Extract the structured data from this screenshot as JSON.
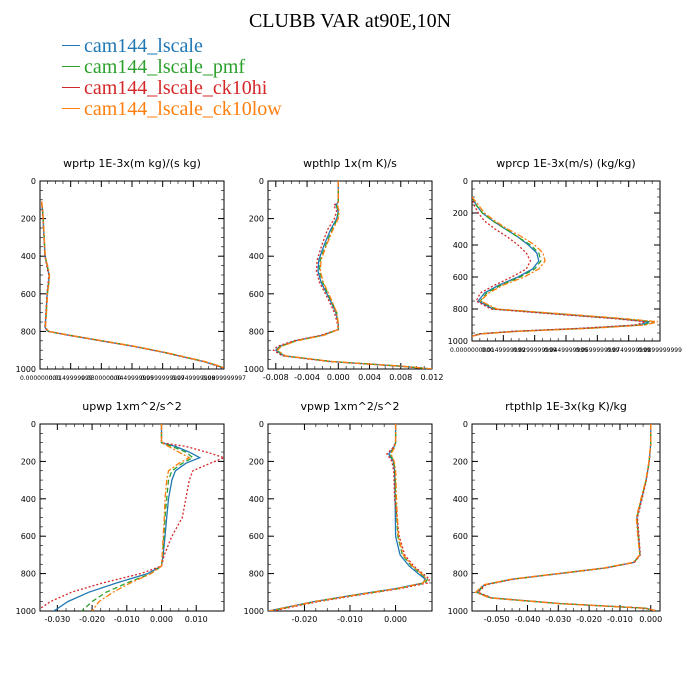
{
  "figure": {
    "title": "CLUBB VAR at90E,10N",
    "legend": [
      {
        "name": "cam144_lscale",
        "color": "#1f77b4"
      },
      {
        "name": "cam144_lscale_pmf",
        "color": "#2ca02c"
      },
      {
        "name": "cam144_lscale_ck10hi",
        "color": "#d62728"
      },
      {
        "name": "cam144_lscale_ck10low",
        "color": "#ff7f0e"
      }
    ]
  },
  "chart_data": [
    {
      "type": "line",
      "title": "wprtp  1E-3x(m kg)/(s kg)",
      "xlim": [
        0,
        0.09
      ],
      "ylim": [
        0,
        1000
      ],
      "y_inverted": true,
      "xticks": [
        0,
        0.015,
        0.03,
        0.045,
        0.06,
        0.075,
        0.09
      ],
      "xtick_labels": [
        "0.000000000",
        "0.0149999999",
        "0.030000000",
        "0.0449999999",
        "0.0599999999",
        "0.0749999999",
        "0.0899999997"
      ],
      "yticks": [
        0,
        200,
        400,
        600,
        800,
        1000
      ],
      "ytick_labels": [
        "0",
        "200",
        "400",
        "600",
        "800",
        "1000"
      ],
      "y": [
        110,
        150,
        200,
        300,
        400,
        480,
        500,
        540,
        600,
        700,
        780,
        800,
        820,
        850,
        880,
        910,
        940,
        960,
        980,
        992,
        1000
      ],
      "series": [
        {
          "name": "cam144_lscale",
          "values": [
            0.0008,
            0.0012,
            0.0015,
            0.002,
            0.0025,
            0.004,
            0.0045,
            0.0042,
            0.0035,
            0.003,
            0.0025,
            0.004,
            0.014,
            0.03,
            0.046,
            0.06,
            0.072,
            0.08,
            0.086,
            0.089,
            0.088
          ]
        },
        {
          "name": "cam144_lscale_pmf",
          "values": [
            0.0008,
            0.0012,
            0.0015,
            0.002,
            0.0025,
            0.0042,
            0.0046,
            0.0043,
            0.0036,
            0.0031,
            0.0026,
            0.0042,
            0.0143,
            0.0303,
            0.0463,
            0.0603,
            0.0723,
            0.0803,
            0.0863,
            0.0893,
            0.0885
          ]
        },
        {
          "name": "cam144_lscale_ck10hi",
          "values": [
            0.0008,
            0.0011,
            0.0014,
            0.0019,
            0.0024,
            0.0038,
            0.0043,
            0.004,
            0.0034,
            0.0029,
            0.0024,
            0.0038,
            0.0138,
            0.0298,
            0.0458,
            0.0598,
            0.0718,
            0.0798,
            0.0858,
            0.0888,
            0.0882
          ]
        },
        {
          "name": "cam144_lscale_ck10low",
          "values": [
            0.0008,
            0.0013,
            0.0016,
            0.0021,
            0.0026,
            0.0043,
            0.0047,
            0.0044,
            0.0037,
            0.0032,
            0.0027,
            0.0044,
            0.0145,
            0.0305,
            0.0466,
            0.0606,
            0.0726,
            0.0806,
            0.0866,
            0.0895,
            0.089
          ]
        }
      ]
    },
    {
      "type": "line",
      "title": "wpthlp  1x(m K)/s",
      "xlim": [
        -0.009,
        0.012
      ],
      "ylim": [
        0,
        1000
      ],
      "y_inverted": true,
      "xticks": [
        -0.008,
        -0.004,
        0.0,
        0.004,
        0.008,
        0.012
      ],
      "xtick_labels": [
        "-0.008",
        "-0.004",
        "0.000",
        "0.004",
        "0.008",
        "0.012"
      ],
      "yticks": [
        0,
        200,
        400,
        600,
        800,
        1000
      ],
      "ytick_labels": [
        "0",
        "200",
        "400",
        "600",
        "800",
        "1000"
      ],
      "y": [
        0,
        110,
        130,
        160,
        200,
        260,
        340,
        420,
        480,
        540,
        620,
        700,
        760,
        790,
        820,
        850,
        880,
        900,
        930,
        960,
        985,
        1000
      ],
      "series": [
        {
          "name": "cam144_lscale",
          "values": [
            0.0,
            0.0,
            -0.0003,
            0.0,
            -0.0002,
            -0.001,
            -0.0018,
            -0.0025,
            -0.0026,
            -0.0022,
            -0.0012,
            -0.0003,
            0.0,
            0.0,
            -0.002,
            -0.0055,
            -0.0075,
            -0.008,
            -0.007,
            -0.001,
            0.008,
            0.012
          ]
        },
        {
          "name": "cam144_lscale_pmf",
          "values": [
            0.0,
            0.0,
            -0.0002,
            0.0,
            -0.0001,
            -0.0008,
            -0.0016,
            -0.0023,
            -0.0024,
            -0.002,
            -0.0011,
            -0.0002,
            0.0,
            0.0,
            -0.0019,
            -0.0054,
            -0.0074,
            -0.0079,
            -0.0069,
            -0.0009,
            0.0081,
            0.012
          ]
        },
        {
          "name": "cam144_lscale_ck10hi",
          "values": [
            0.0,
            0.0,
            -0.0006,
            -0.0002,
            -0.0005,
            -0.0014,
            -0.0021,
            -0.0027,
            -0.0028,
            -0.0024,
            -0.0014,
            -0.0005,
            -0.0001,
            0.0,
            -0.0022,
            -0.0057,
            -0.0078,
            -0.0083,
            -0.0072,
            -0.0012,
            0.0079,
            0.012
          ]
        },
        {
          "name": "cam144_lscale_ck10low",
          "values": [
            0.0,
            0.0,
            -0.0001,
            0.0001,
            0.0,
            -0.0007,
            -0.0015,
            -0.0022,
            -0.0023,
            -0.0019,
            -0.001,
            -0.0002,
            0.0,
            0.0,
            -0.0018,
            -0.0053,
            -0.0073,
            -0.0078,
            -0.0068,
            -0.0008,
            0.0082,
            0.012
          ]
        }
      ]
    },
    {
      "type": "line",
      "title": "wprcp  1E-3x(m/s) (kg/kg)",
      "xlim": [
        0,
        0.09
      ],
      "ylim": [
        0,
        1000
      ],
      "y_inverted": true,
      "xticks": [
        0,
        0.015,
        0.03,
        0.045,
        0.06,
        0.075,
        0.09
      ],
      "xtick_labels": [
        "0.0000000000",
        "0.0149999999",
        "0.0299999999",
        "0.0449999999",
        "0.0599999999",
        "0.0749999999",
        "0.0899999999"
      ],
      "yticks": [
        0,
        200,
        400,
        600,
        800,
        1000
      ],
      "ytick_labels": [
        "0",
        "200",
        "400",
        "600",
        "800",
        "1000"
      ],
      "y": [
        100,
        150,
        200,
        250,
        300,
        350,
        400,
        450,
        500,
        550,
        600,
        650,
        700,
        750,
        800,
        830,
        860,
        880,
        900,
        920,
        940,
        955,
        970
      ],
      "series": [
        {
          "name": "cam144_lscale",
          "values": [
            0.0,
            0.002,
            0.005,
            0.01,
            0.016,
            0.022,
            0.027,
            0.031,
            0.032,
            0.029,
            0.022,
            0.013,
            0.006,
            0.003,
            0.01,
            0.04,
            0.07,
            0.085,
            0.08,
            0.055,
            0.02,
            0.004,
            0.0
          ]
        },
        {
          "name": "cam144_lscale_pmf",
          "values": [
            0.0,
            0.002,
            0.005,
            0.01,
            0.016,
            0.022,
            0.028,
            0.032,
            0.033,
            0.03,
            0.023,
            0.014,
            0.007,
            0.004,
            0.011,
            0.041,
            0.071,
            0.087,
            0.082,
            0.056,
            0.021,
            0.004,
            0.0
          ]
        },
        {
          "name": "cam144_lscale_ck10hi",
          "values": [
            0.0,
            0.001,
            0.003,
            0.006,
            0.011,
            0.017,
            0.022,
            0.026,
            0.028,
            0.026,
            0.019,
            0.011,
            0.004,
            0.002,
            0.009,
            0.038,
            0.068,
            0.083,
            0.078,
            0.053,
            0.019,
            0.004,
            0.0
          ]
        },
        {
          "name": "cam144_lscale_ck10low",
          "values": [
            0.0,
            0.003,
            0.006,
            0.011,
            0.017,
            0.024,
            0.03,
            0.034,
            0.035,
            0.032,
            0.025,
            0.015,
            0.008,
            0.004,
            0.012,
            0.043,
            0.073,
            0.089,
            0.083,
            0.058,
            0.022,
            0.005,
            0.0
          ]
        }
      ]
    },
    {
      "type": "line",
      "title": "upwp  1xm^2/s^2",
      "xlim": [
        -0.035,
        0.018
      ],
      "ylim": [
        0,
        1000
      ],
      "y_inverted": true,
      "xticks": [
        -0.03,
        -0.02,
        -0.01,
        0.0,
        0.01
      ],
      "xtick_labels": [
        "-0.030",
        "-0.020",
        "-0.010",
        "0.000",
        "0.010"
      ],
      "yticks": [
        0,
        200,
        400,
        600,
        800,
        1000
      ],
      "ytick_labels": [
        "0",
        "200",
        "400",
        "600",
        "800",
        "1000"
      ],
      "y": [
        0,
        100,
        120,
        150,
        180,
        210,
        250,
        300,
        400,
        500,
        600,
        700,
        760,
        800,
        850,
        900,
        950,
        1000
      ],
      "series": [
        {
          "name": "cam144_lscale",
          "values": [
            0.0,
            0.0,
            0.004,
            0.008,
            0.011,
            0.007,
            0.004,
            0.003,
            0.002,
            0.0015,
            0.001,
            0.0005,
            0.0,
            -0.004,
            -0.013,
            -0.021,
            -0.027,
            -0.031
          ]
        },
        {
          "name": "cam144_lscale_pmf",
          "values": [
            0.0,
            0.0,
            0.003,
            0.007,
            0.009,
            0.006,
            0.003,
            0.002,
            0.0015,
            0.001,
            0.0007,
            0.0003,
            0.0,
            -0.003,
            -0.01,
            -0.016,
            -0.02,
            -0.023
          ]
        },
        {
          "name": "cam144_lscale_ck10hi",
          "values": [
            0.0,
            0.0,
            0.007,
            0.013,
            0.018,
            0.014,
            0.009,
            0.008,
            0.007,
            0.006,
            0.003,
            0.0008,
            0.0,
            -0.006,
            -0.017,
            -0.026,
            -0.032,
            -0.036
          ]
        },
        {
          "name": "cam144_lscale_ck10low",
          "values": [
            0.0,
            0.0,
            0.002,
            0.005,
            0.008,
            0.005,
            0.002,
            0.0015,
            0.001,
            0.0008,
            0.0005,
            0.0002,
            0.0,
            -0.003,
            -0.009,
            -0.014,
            -0.018,
            -0.02
          ]
        }
      ]
    },
    {
      "type": "line",
      "title": "vpwp  1xm^2/s^2",
      "xlim": [
        -0.028,
        0.008
      ],
      "ylim": [
        0,
        1000
      ],
      "y_inverted": true,
      "xticks": [
        -0.02,
        -0.01,
        0.0
      ],
      "xtick_labels": [
        "-0.020",
        "-0.010",
        "0.000"
      ],
      "yticks": [
        0,
        200,
        400,
        600,
        800,
        1000
      ],
      "ytick_labels": [
        "0",
        "200",
        "400",
        "600",
        "800",
        "1000"
      ],
      "y": [
        0,
        100,
        130,
        160,
        200,
        250,
        400,
        600,
        700,
        760,
        800,
        830,
        850,
        880,
        910,
        950,
        1000
      ],
      "series": [
        {
          "name": "cam144_lscale",
          "values": [
            0.0,
            0.0,
            -0.0005,
            -0.0015,
            -0.0005,
            -0.0002,
            -0.0001,
            0.0,
            0.001,
            0.003,
            0.005,
            0.0065,
            0.006,
            0.0,
            -0.008,
            -0.018,
            -0.028
          ]
        },
        {
          "name": "cam144_lscale_pmf",
          "values": [
            0.0,
            0.0,
            -0.0004,
            -0.0012,
            -0.0004,
            -0.0001,
            0.0,
            0.0005,
            0.0015,
            0.0035,
            0.0055,
            0.007,
            0.0065,
            0.0005,
            -0.0075,
            -0.0175,
            -0.0275
          ]
        },
        {
          "name": "cam144_lscale_ck10hi",
          "values": [
            0.0,
            0.0,
            -0.0007,
            -0.0019,
            -0.0008,
            -0.0004,
            -0.0002,
            0.0008,
            0.002,
            0.004,
            0.006,
            0.0075,
            0.007,
            0.001,
            -0.007,
            -0.017,
            -0.027
          ]
        },
        {
          "name": "cam144_lscale_ck10low",
          "values": [
            0.0,
            0.0,
            -0.0003,
            -0.001,
            -0.0003,
            0.0,
            0.0002,
            0.0006,
            0.0017,
            0.0037,
            0.0057,
            0.0068,
            0.006,
            0.0003,
            -0.0078,
            -0.0178,
            -0.0278
          ]
        }
      ]
    },
    {
      "type": "line",
      "title": "rtpthlp  1E-3x(kg K)/kg",
      "xlim": [
        -0.058,
        0.003
      ],
      "ylim": [
        0,
        1000
      ],
      "y_inverted": true,
      "xticks": [
        -0.05,
        -0.04,
        -0.03,
        -0.02,
        -0.01,
        0.0
      ],
      "xtick_labels": [
        "-0.050",
        "-0.040",
        "-0.030",
        "-0.020",
        "-0.010",
        "0.000"
      ],
      "yticks": [
        0,
        200,
        400,
        600,
        800,
        1000
      ],
      "ytick_labels": [
        "0",
        "200",
        "400",
        "600",
        "800",
        "1000"
      ],
      "y": [
        0,
        100,
        200,
        300,
        400,
        500,
        600,
        700,
        740,
        770,
        800,
        830,
        860,
        900,
        930,
        960,
        985,
        1000
      ],
      "series": [
        {
          "name": "cam144_lscale",
          "values": [
            0.0,
            0.0,
            -0.0005,
            -0.0015,
            -0.003,
            -0.0045,
            -0.004,
            -0.0035,
            -0.0055,
            -0.015,
            -0.03,
            -0.045,
            -0.054,
            -0.0565,
            -0.052,
            -0.03,
            -0.002,
            0.002
          ]
        },
        {
          "name": "cam144_lscale_pmf",
          "values": [
            0.0,
            0.0,
            -0.0005,
            -0.0015,
            -0.003,
            -0.0045,
            -0.004,
            -0.0035,
            -0.0054,
            -0.0148,
            -0.0298,
            -0.0448,
            -0.0538,
            -0.0563,
            -0.0518,
            -0.0298,
            -0.0018,
            0.002
          ]
        },
        {
          "name": "cam144_lscale_ck10hi",
          "values": [
            0.0,
            0.0,
            -0.0005,
            -0.0014,
            -0.0028,
            -0.0043,
            -0.0038,
            -0.0034,
            -0.0053,
            -0.0145,
            -0.0295,
            -0.0445,
            -0.0535,
            -0.056,
            -0.0515,
            -0.0295,
            -0.0016,
            0.002
          ]
        },
        {
          "name": "cam144_lscale_ck10low",
          "values": [
            0.0,
            0.0,
            -0.0006,
            -0.0016,
            -0.0032,
            -0.0047,
            -0.0042,
            -0.0036,
            -0.0057,
            -0.0153,
            -0.0303,
            -0.0453,
            -0.0543,
            -0.0568,
            -0.0523,
            -0.0303,
            -0.0022,
            0.002
          ]
        }
      ]
    }
  ]
}
